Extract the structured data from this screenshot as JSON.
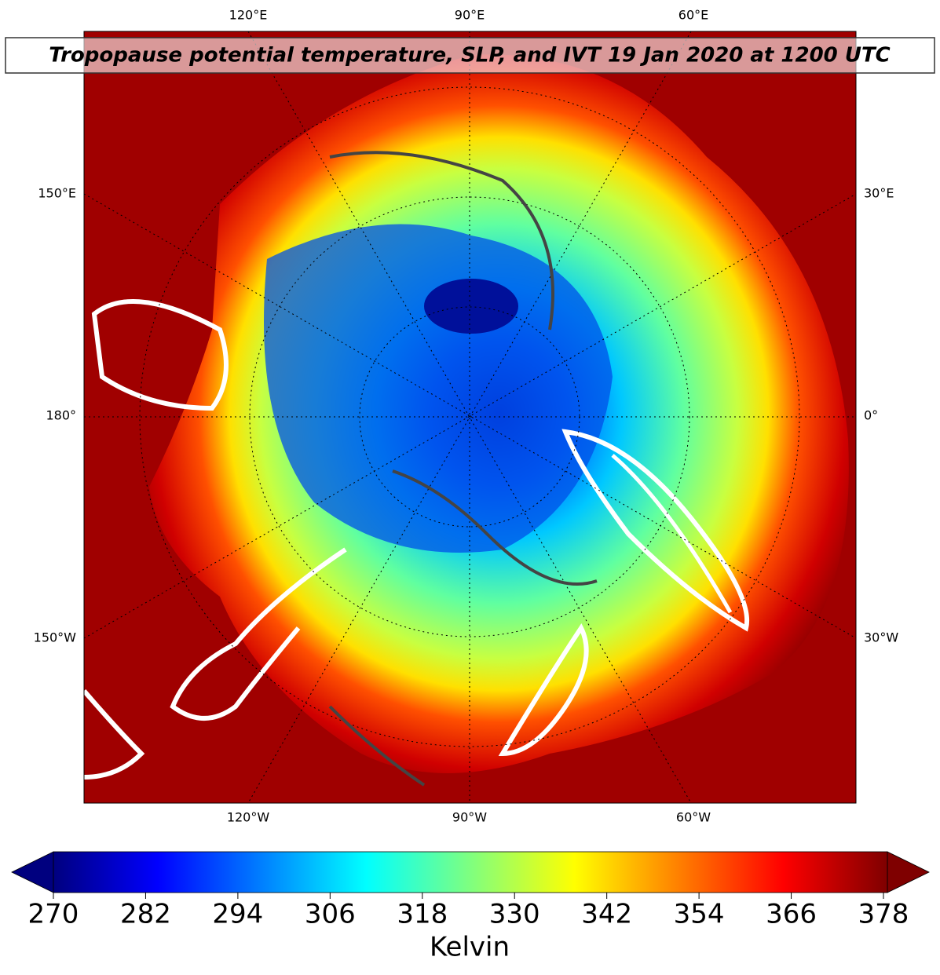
{
  "title": "Tropopause potential temperature, SLP, and IVT 19 Jan 2020 at 1200 UTC",
  "map": {
    "longitude_labels": {
      "top": [
        "120°E",
        "90°E",
        "60°E"
      ],
      "left": [
        "150°E",
        "180°",
        "150°W"
      ],
      "right": [
        "30°E",
        "0°",
        "30°W"
      ],
      "bottom": [
        "120°W",
        "90°W",
        "60°W"
      ]
    }
  },
  "colorbar": {
    "colormap": "jet",
    "label": "Kelvin",
    "lim": [
      270,
      378
    ],
    "ticks": [
      270,
      282,
      294,
      306,
      318,
      330,
      342,
      354,
      366,
      378
    ]
  }
}
